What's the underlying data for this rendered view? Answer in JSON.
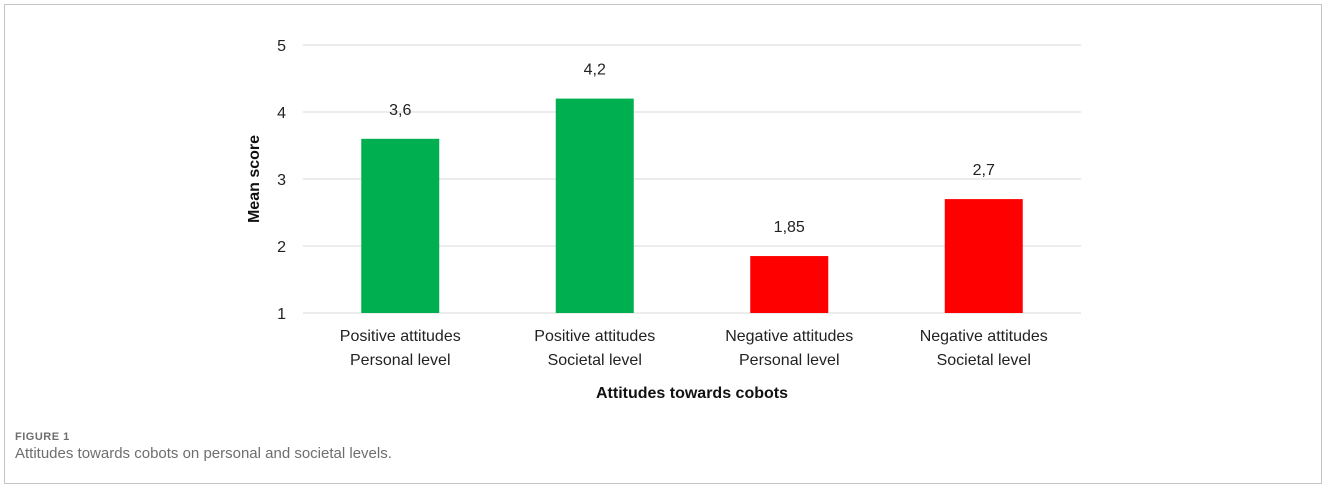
{
  "figure": {
    "label": "FIGURE 1",
    "caption": "Attitudes towards cobots on personal and societal levels."
  },
  "chart_data": {
    "type": "bar",
    "title": "",
    "xlabel": "Attitudes towards cobots",
    "ylabel": "Mean score",
    "ylim": [
      1,
      5
    ],
    "yticks": [
      1,
      2,
      3,
      4,
      5
    ],
    "grid": true,
    "legend": "none",
    "categories": [
      [
        "Positive attitudes",
        "Personal level"
      ],
      [
        "Positive attitudes",
        "Societal level"
      ],
      [
        "Negative attitudes",
        "Personal level"
      ],
      [
        "Negative attitudes",
        "Societal level"
      ]
    ],
    "values": [
      3.6,
      4.2,
      1.85,
      2.7
    ],
    "data_labels": [
      "3,6",
      "4,2",
      "1,85",
      "2,7"
    ],
    "colors": [
      "#00b050",
      "#00b050",
      "#ff0000",
      "#ff0000"
    ]
  }
}
